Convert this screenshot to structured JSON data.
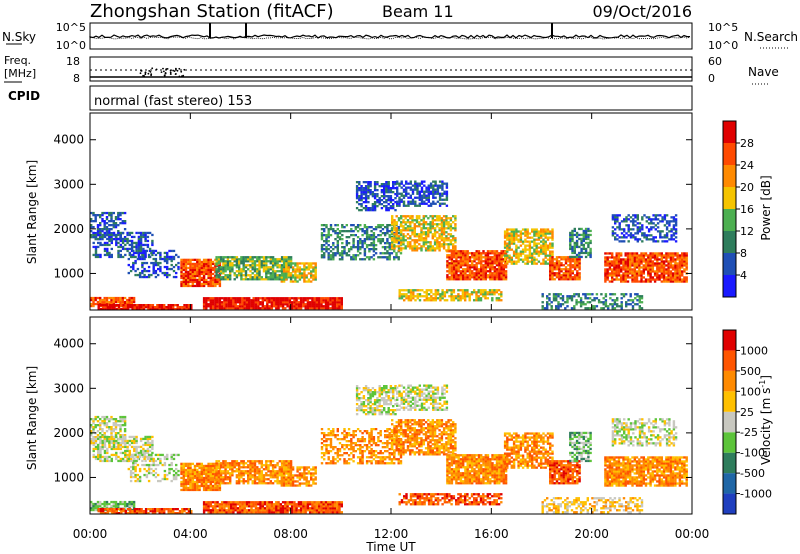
{
  "header": {
    "title": "Zhongshan Station (fitACF)",
    "beam": "Beam 11",
    "date": "09/Oct/2016"
  },
  "noise_panel": {
    "left_label": "N.Sky",
    "right_label": "N.Search",
    "left_ticks": [
      "10^5",
      "10^0"
    ],
    "right_ticks": [
      "10^5",
      "10^0"
    ]
  },
  "freq_panel": {
    "left_label_line1": "Freq.",
    "left_label_line2": "[MHz]",
    "right_label": "Nave",
    "left_ticks": [
      "18",
      "8"
    ],
    "right_ticks": [
      "60",
      "0"
    ]
  },
  "cpid": {
    "label": "CPID",
    "value": "normal (fast stereo) 153"
  },
  "x_axis": {
    "label": "Time UT",
    "ticks": [
      "00:00",
      "04:00",
      "08:00",
      "12:00",
      "16:00",
      "20:00",
      "00:00"
    ]
  },
  "chart_data": [
    {
      "type": "heatmap",
      "name": "power-panel",
      "ylabel": "Slant Range [km]",
      "yticks": [
        1000,
        2000,
        3000,
        4000
      ],
      "ylim": [
        180,
        4600
      ],
      "xlim_hours": [
        0,
        24
      ],
      "colorbar": {
        "label": "Power [dB]",
        "ticks": [
          "4",
          "8",
          "12",
          "16",
          "20",
          "24",
          "28"
        ],
        "colors": [
          "#1a1aff",
          "#1f4fb5",
          "#2e7d5c",
          "#4caf50",
          "#f5c400",
          "#ff8a00",
          "#ff4a00",
          "#e00000"
        ]
      }
    },
    {
      "type": "heatmap",
      "name": "velocity-panel",
      "ylabel": "Slant Range [km]",
      "yticks": [
        1000,
        2000,
        3000,
        4000
      ],
      "ylim": [
        180,
        4600
      ],
      "xlim_hours": [
        0,
        24
      ],
      "colorbar": {
        "label": "Velocity [m s",
        "label_sup": "-1",
        "label_end": "]",
        "ticks": [
          "1000",
          "500",
          "100",
          "25",
          "-25",
          "-100",
          "-500",
          "-1000"
        ],
        "colors": [
          "#1f3fbf",
          "#1f66a6",
          "#2e7d5c",
          "#5cc43a",
          "#c8c8c0",
          "#ffc000",
          "#ff8a00",
          "#ff5500",
          "#e00000"
        ]
      }
    }
  ]
}
